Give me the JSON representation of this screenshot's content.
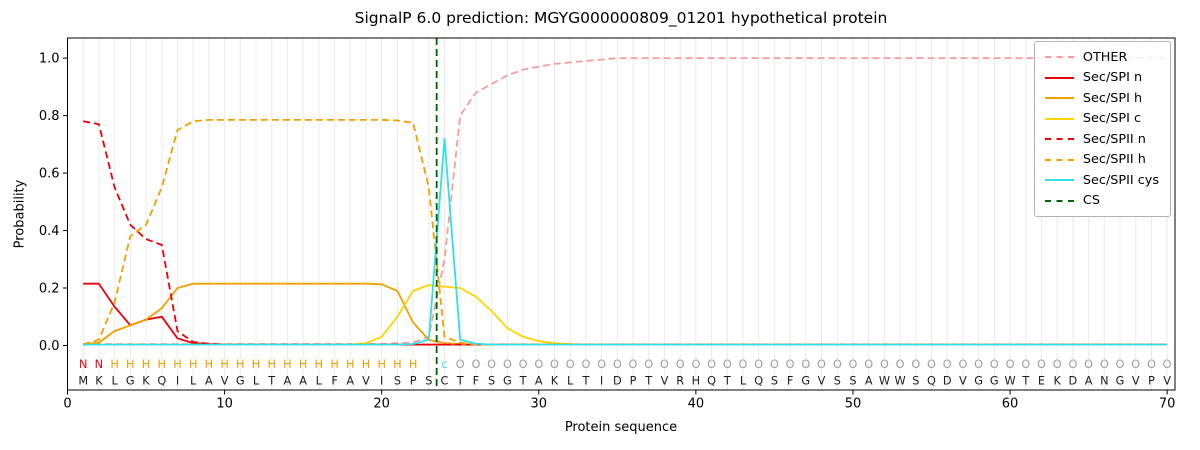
{
  "chart_data": {
    "type": "line",
    "title": "SignalP 6.0 prediction: MGYG000000809_01201 hypothetical protein",
    "xlabel": "Protein sequence",
    "ylabel": "Probability",
    "xlim": [
      0,
      70.5
    ],
    "ylim": [
      0.0,
      1.0
    ],
    "xticks": [
      0,
      10,
      20,
      30,
      40,
      50,
      60,
      70
    ],
    "yticks": [
      0,
      0.2,
      0.4,
      0.6,
      0.8,
      1
    ],
    "ytick_labels": [
      "0.0",
      "0.2",
      "0.4",
      "0.6",
      "0.8",
      "1.0"
    ],
    "grid": "vertical line at every residue position",
    "legend_position": "upper right",
    "x_start": 1,
    "sequence": "MKLGKQILAVGLTAALFAVISPSCTFSGTAKLTIDPTVRHQTLQSFGVSSAWWSQDVGGWTEKDANGVPV",
    "sequence_annotation": "NNHHHHHHHHHHHHHHHHHHHH cOOOOOOOOOOOOOOOOOOOOOOOOOOOOOOOOOOOOOOOOOOOOOO",
    "annotation_colors": {
      "N": "#e8000b",
      "H": "#f0a000",
      "c": "#2fe0e6",
      "O": "#9e9e9e"
    },
    "cs": {
      "label": "CS",
      "color": "#006400",
      "dash": true,
      "position": 23.5
    },
    "series": [
      {
        "name": "OTHER",
        "color": "#f79c9c",
        "dash": true,
        "values": [
          0.005,
          0.005,
          0.005,
          0.005,
          0.005,
          0.005,
          0.005,
          0.005,
          0.005,
          0.005,
          0.005,
          0.005,
          0.005,
          0.005,
          0.005,
          0.005,
          0.005,
          0.005,
          0.005,
          0.005,
          0.008,
          0.01,
          0.03,
          0.3,
          0.8,
          0.88,
          0.91,
          0.94,
          0.96,
          0.97,
          0.98,
          0.985,
          0.99,
          0.995,
          1,
          1,
          1,
          1,
          1,
          1,
          1,
          1,
          1,
          1,
          1,
          1,
          1,
          1,
          1,
          1,
          1,
          1,
          1,
          1,
          1,
          1,
          1,
          1,
          1,
          1,
          1,
          1,
          1,
          1,
          1,
          1,
          1,
          1,
          1,
          1
        ]
      },
      {
        "name": "Sec/SPI n",
        "color": "#e8000b",
        "dash": false,
        "values": [
          0.215,
          0.215,
          0.135,
          0.07,
          0.09,
          0.1,
          0.025,
          0.008,
          0.005,
          0.003,
          0.003,
          0.003,
          0.003,
          0.003,
          0.003,
          0.003,
          0.003,
          0.003,
          0.003,
          0.003,
          0.003,
          0.003,
          0.003,
          0.003,
          0.003,
          0.003,
          0.003,
          0.003,
          0.003,
          0.003,
          0.003,
          0.003,
          0.003,
          0.003,
          0.003,
          0.003,
          0.003,
          0.003,
          0.003,
          0.003,
          0.003,
          0.003,
          0.003,
          0.003,
          0.003,
          0.003,
          0.003,
          0.003,
          0.003,
          0.003,
          0.003,
          0.003,
          0.003,
          0.003,
          0.003,
          0.003,
          0.003,
          0.003,
          0.003,
          0.003,
          0.003,
          0.003,
          0.003,
          0.003,
          0.003,
          0.003,
          0.003,
          0.003,
          0.003,
          0.003
        ]
      },
      {
        "name": "Sec/SPI h",
        "color": "#f0a000",
        "dash": false,
        "values": [
          0.004,
          0.01,
          0.05,
          0.07,
          0.09,
          0.13,
          0.2,
          0.215,
          0.215,
          0.215,
          0.215,
          0.215,
          0.215,
          0.215,
          0.215,
          0.215,
          0.215,
          0.215,
          0.215,
          0.213,
          0.19,
          0.08,
          0.02,
          0.008,
          0.005,
          0.003,
          0.003,
          0.003,
          0.003,
          0.003,
          0.003,
          0.003,
          0.003,
          0.003,
          0.003,
          0.003,
          0.003,
          0.003,
          0.003,
          0.003,
          0.003,
          0.003,
          0.003,
          0.003,
          0.003,
          0.003,
          0.003,
          0.003,
          0.003,
          0.003,
          0.003,
          0.003,
          0.003,
          0.003,
          0.003,
          0.003,
          0.003,
          0.003,
          0.003,
          0.003,
          0.003,
          0.003,
          0.003,
          0.003,
          0.003,
          0.003,
          0.003,
          0.003,
          0.003,
          0.003
        ]
      },
      {
        "name": "Sec/SPI c",
        "color": "#ffd500",
        "dash": false,
        "values": [
          0.003,
          0.003,
          0.003,
          0.003,
          0.003,
          0.003,
          0.003,
          0.003,
          0.003,
          0.003,
          0.003,
          0.003,
          0.003,
          0.003,
          0.003,
          0.003,
          0.003,
          0.003,
          0.008,
          0.03,
          0.1,
          0.19,
          0.21,
          0.205,
          0.2,
          0.17,
          0.12,
          0.06,
          0.03,
          0.015,
          0.008,
          0.005,
          0.003,
          0.003,
          0.003,
          0.003,
          0.003,
          0.003,
          0.003,
          0.003,
          0.003,
          0.003,
          0.003,
          0.003,
          0.003,
          0.003,
          0.003,
          0.003,
          0.003,
          0.003,
          0.003,
          0.003,
          0.003,
          0.003,
          0.003,
          0.003,
          0.003,
          0.003,
          0.003,
          0.003,
          0.003,
          0.003,
          0.003,
          0.003,
          0.003,
          0.003,
          0.003,
          0.003,
          0.003,
          0.003
        ]
      },
      {
        "name": "Sec/SPII n",
        "color": "#e8000b",
        "dash": true,
        "values": [
          0.78,
          0.77,
          0.55,
          0.42,
          0.37,
          0.35,
          0.05,
          0.012,
          0.006,
          0.003,
          0.003,
          0.003,
          0.003,
          0.003,
          0.003,
          0.003,
          0.003,
          0.003,
          0.003,
          0.003,
          0.003,
          0.003,
          0.003,
          0.003,
          0.003,
          0.003,
          0.003,
          0.003,
          0.003,
          0.003,
          0.003,
          0.003,
          0.003,
          0.003,
          0.003,
          0.003,
          0.003,
          0.003,
          0.003,
          0.003,
          0.003,
          0.003,
          0.003,
          0.003,
          0.003,
          0.003,
          0.003,
          0.003,
          0.003,
          0.003,
          0.003,
          0.003,
          0.003,
          0.003,
          0.003,
          0.003,
          0.003,
          0.003,
          0.003,
          0.003,
          0.003,
          0.003,
          0.003,
          0.003,
          0.003,
          0.003,
          0.003,
          0.003,
          0.003,
          0.003
        ]
      },
      {
        "name": "Sec/SPII h",
        "color": "#f0a000",
        "dash": true,
        "values": [
          0.004,
          0.02,
          0.15,
          0.38,
          0.42,
          0.55,
          0.75,
          0.78,
          0.785,
          0.785,
          0.785,
          0.785,
          0.785,
          0.785,
          0.785,
          0.785,
          0.785,
          0.785,
          0.785,
          0.785,
          0.783,
          0.775,
          0.55,
          0.03,
          0.01,
          0.003,
          0.003,
          0.003,
          0.003,
          0.003,
          0.003,
          0.003,
          0.003,
          0.003,
          0.003,
          0.003,
          0.003,
          0.003,
          0.003,
          0.003,
          0.003,
          0.003,
          0.003,
          0.003,
          0.003,
          0.003,
          0.003,
          0.003,
          0.003,
          0.003,
          0.003,
          0.003,
          0.003,
          0.003,
          0.003,
          0.003,
          0.003,
          0.003,
          0.003,
          0.003,
          0.003,
          0.003,
          0.003,
          0.003,
          0.003,
          0.003,
          0.003,
          0.003,
          0.003,
          0.003
        ]
      },
      {
        "name": "Sec/SPII cys",
        "color": "#2fe0e6",
        "dash": false,
        "values": [
          0.003,
          0.003,
          0.003,
          0.003,
          0.003,
          0.003,
          0.003,
          0.003,
          0.003,
          0.003,
          0.003,
          0.003,
          0.003,
          0.003,
          0.003,
          0.003,
          0.003,
          0.003,
          0.003,
          0.003,
          0.003,
          0.005,
          0.02,
          0.72,
          0.02,
          0.006,
          0.003,
          0.003,
          0.003,
          0.003,
          0.003,
          0.003,
          0.003,
          0.003,
          0.003,
          0.003,
          0.003,
          0.003,
          0.003,
          0.003,
          0.003,
          0.003,
          0.003,
          0.003,
          0.003,
          0.003,
          0.003,
          0.003,
          0.003,
          0.003,
          0.003,
          0.003,
          0.003,
          0.003,
          0.003,
          0.003,
          0.003,
          0.003,
          0.003,
          0.003,
          0.003,
          0.003,
          0.003,
          0.003,
          0.003,
          0.003,
          0.003,
          0.003,
          0.003,
          0.003
        ]
      }
    ]
  }
}
